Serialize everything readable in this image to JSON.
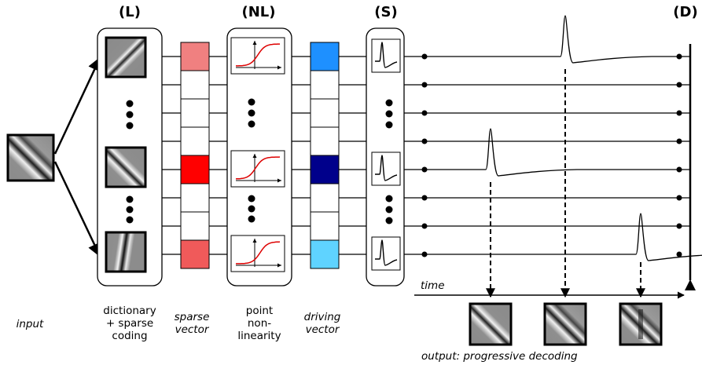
{
  "headers": {
    "L": "(L)",
    "NL": "(NL)",
    "S": "(S)",
    "D": "(D)"
  },
  "labels": {
    "input": "input",
    "dictionary": [
      "dictionary",
      "+ sparse",
      "coding"
    ],
    "sparse_vector": [
      "sparse",
      "vector"
    ],
    "point_nonlinearity": [
      "point",
      "non-",
      "linearity"
    ],
    "driving_vector": [
      "driving",
      "vector"
    ],
    "time": "time",
    "output": "output: progressive decoding"
  },
  "colors": {
    "sparse_vector": [
      "#f08080",
      "#ffffff",
      "#ffffff",
      "#ffffff",
      "#ff0000",
      "#ffffff",
      "#ffffff",
      "#f05a5a"
    ],
    "driving_vector": [
      "#1e90ff",
      "#ffffff",
      "#ffffff",
      "#ffffff",
      "#00008b",
      "#ffffff",
      "#ffffff",
      "#5fd3ff"
    ],
    "nonlinearity_curve": "#dd0000",
    "line": "#000000"
  },
  "spikes": {
    "rows_with_spike": [
      0,
      4,
      7
    ]
  }
}
